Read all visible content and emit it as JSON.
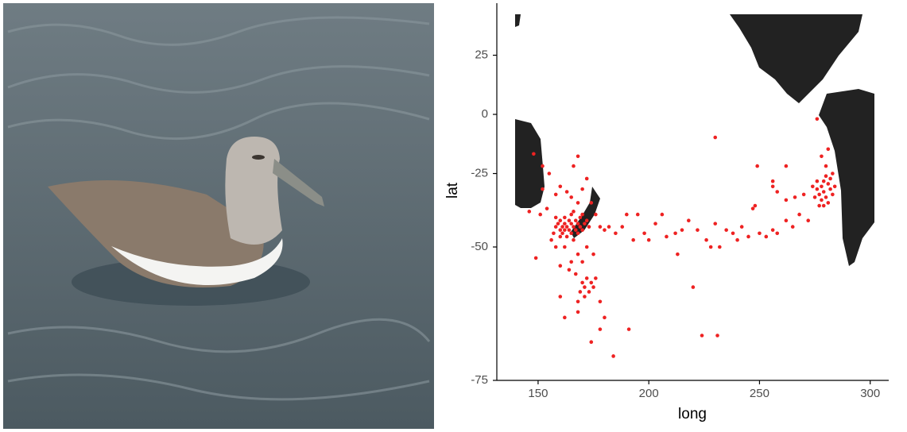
{
  "chart_data": {
    "type": "scatter",
    "projection": "mercator",
    "x_label": "long",
    "y_label": "lat",
    "color": "#ee2222",
    "xlim": [
      131,
      308
    ],
    "ylim": [
      -75,
      40
    ],
    "xticks": [
      150,
      200,
      250,
      300
    ],
    "yticks": [
      25,
      0,
      -25,
      -50,
      -75
    ],
    "x": [
      158,
      159,
      160,
      160,
      161,
      161,
      162,
      162,
      163,
      163,
      164,
      164,
      165,
      165,
      166,
      166,
      167,
      167,
      168,
      168,
      169,
      169,
      170,
      171,
      172,
      173,
      160,
      162,
      165,
      166,
      170,
      158,
      157,
      160,
      163,
      165,
      168,
      170,
      172,
      174,
      176,
      178,
      180,
      172,
      168,
      165,
      162,
      158,
      164,
      167,
      170,
      175,
      160,
      156,
      154,
      152,
      148,
      152,
      155,
      158,
      166,
      168,
      160,
      162,
      168,
      174,
      178,
      184,
      191,
      149,
      146,
      151,
      170,
      171,
      172,
      173,
      174,
      175,
      169,
      171,
      176,
      178,
      180,
      168,
      182,
      185,
      188,
      190,
      193,
      195,
      198,
      200,
      203,
      206,
      208,
      212,
      213,
      215,
      218,
      220,
      222,
      224,
      231,
      226,
      228,
      230,
      232,
      235,
      238,
      240,
      242,
      245,
      247,
      248,
      250,
      253,
      256,
      258,
      262,
      265,
      268,
      272,
      274,
      230,
      249,
      256,
      262,
      258,
      256,
      262,
      266,
      270,
      276,
      277,
      278,
      278,
      279,
      279,
      280,
      280,
      281,
      281,
      282,
      282,
      283,
      283,
      277,
      279,
      276,
      284,
      275,
      280,
      278,
      276,
      281
    ],
    "y": [
      -44,
      -43,
      -45,
      -42,
      -44,
      -46,
      -43,
      -45,
      -44,
      -47,
      -42,
      -45,
      -43,
      -46,
      -44,
      -48,
      -42,
      -45,
      -43,
      -46,
      -44,
      -41,
      -45,
      -43,
      -42,
      -44,
      -47,
      -41,
      -40,
      -39,
      -40,
      -41,
      -46,
      -30,
      -32,
      -34,
      -36,
      -31,
      -27,
      -36,
      -40,
      -44,
      -45,
      -50,
      -52,
      -54,
      -50,
      -50,
      -56,
      -57,
      -54,
      -52,
      -55,
      -48,
      -38,
      -31,
      -17,
      -22,
      -25,
      -33,
      -22,
      -18,
      -62,
      -66,
      -65,
      -70,
      -68,
      -72,
      -68,
      -53,
      -39,
      -40,
      -59,
      -60,
      -58,
      -61,
      -59,
      -60,
      -61,
      -62,
      -58,
      -63,
      -66,
      -63,
      -44,
      -46,
      -44,
      -40,
      -48,
      -40,
      -46,
      -48,
      -43,
      -40,
      -47,
      -46,
      -52,
      -45,
      -42,
      -60,
      -45,
      -69,
      -69,
      -48,
      -50,
      -43,
      -50,
      -45,
      -46,
      -48,
      -44,
      -47,
      -38,
      -37,
      -46,
      -47,
      -45,
      -46,
      -42,
      -44,
      -40,
      -42,
      -30,
      -10,
      -22,
      -30,
      -22,
      -32,
      -28,
      -35,
      -34,
      -33,
      -31,
      -33,
      -30,
      -35,
      -28,
      -32,
      -26,
      -34,
      -29,
      -36,
      -27,
      -31,
      -25,
      -33,
      -37,
      -37,
      -28,
      -30,
      -34,
      -22,
      -18,
      -2,
      -15
    ]
  }
}
